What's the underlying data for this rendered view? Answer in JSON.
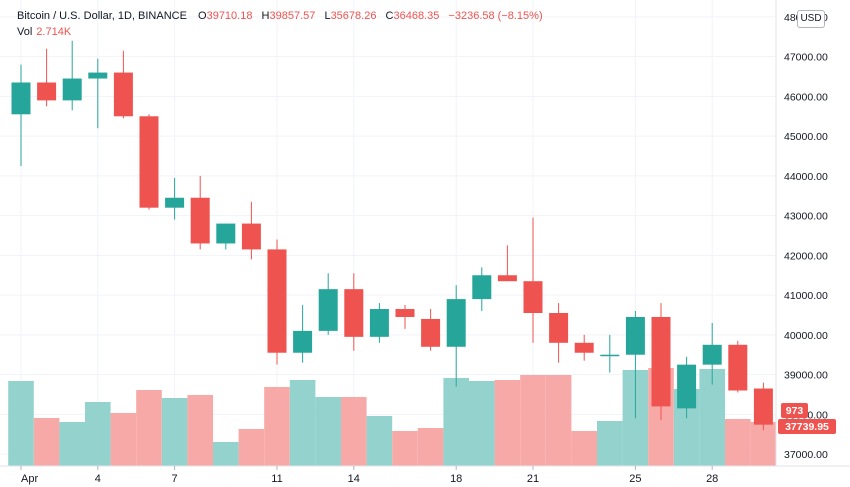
{
  "header": {
    "symbol": "Bitcoin / U.S. Dollar, 1D, BINANCE",
    "open_label": "O",
    "open": "39710.18",
    "high_label": "H",
    "high": "39857.57",
    "low_label": "L",
    "low": "35678.26",
    "close_label": "C",
    "close": "36468.35",
    "change": "−3236.58 (−8.15%)",
    "vol_label": "Vol",
    "vol": "2.714K"
  },
  "currency_button": "USD",
  "badges": {
    "volume": "973",
    "price": "37739.95"
  },
  "colors": {
    "up": "#26a69a",
    "down": "#ef5350",
    "up_volume": "#94d3cd",
    "down_volume": "#f7a9a7",
    "grid": "#f0f3fa"
  },
  "chart_data": {
    "type": "candlestick",
    "y_axis_ticks": [
      "48000.00",
      "47000.00",
      "46000.00",
      "45000.00",
      "44000.00",
      "43000.00",
      "42000.00",
      "41000.00",
      "40000.00",
      "39000.00",
      "38000.00",
      "37000.00"
    ],
    "ylim": [
      36700,
      48250
    ],
    "x_axis_ticks": [
      {
        "day": 1,
        "label": "Apr"
      },
      {
        "day": 4,
        "label": "4"
      },
      {
        "day": 7,
        "label": "7"
      },
      {
        "day": 11,
        "label": "11"
      },
      {
        "day": 14,
        "label": "14"
      },
      {
        "day": 18,
        "label": "18"
      },
      {
        "day": 21,
        "label": "21"
      },
      {
        "day": 25,
        "label": "25"
      },
      {
        "day": 28,
        "label": "28"
      }
    ],
    "first_day": 1,
    "last_day": 31,
    "candles": [
      {
        "day": 1,
        "open": 45550,
        "high": 46800,
        "low": 44250,
        "close": 46350,
        "volume": 0.85
      },
      {
        "day": 2,
        "open": 46350,
        "high": 47200,
        "low": 45750,
        "close": 45900,
        "volume": 0.48
      },
      {
        "day": 3,
        "open": 45900,
        "high": 47400,
        "low": 45650,
        "close": 46450,
        "volume": 0.44
      },
      {
        "day": 4,
        "open": 46450,
        "high": 46950,
        "low": 45200,
        "close": 46600,
        "volume": 0.64
      },
      {
        "day": 5,
        "open": 46600,
        "high": 47150,
        "low": 45450,
        "close": 45500,
        "volume": 0.53
      },
      {
        "day": 6,
        "open": 45500,
        "high": 45550,
        "low": 43150,
        "close": 43200,
        "volume": 0.76
      },
      {
        "day": 7,
        "open": 43200,
        "high": 43950,
        "low": 42900,
        "close": 43450,
        "volume": 0.68
      },
      {
        "day": 8,
        "open": 43450,
        "high": 44000,
        "low": 42150,
        "close": 42300,
        "volume": 0.71
      },
      {
        "day": 9,
        "open": 42300,
        "high": 42800,
        "low": 42150,
        "close": 42800,
        "volume": 0.24
      },
      {
        "day": 10,
        "open": 42800,
        "high": 43350,
        "low": 41900,
        "close": 42150,
        "volume": 0.37
      },
      {
        "day": 11,
        "open": 42150,
        "high": 42400,
        "low": 39250,
        "close": 39550,
        "volume": 0.79
      },
      {
        "day": 12,
        "open": 39550,
        "high": 40750,
        "low": 39300,
        "close": 40100,
        "volume": 0.86
      },
      {
        "day": 13,
        "open": 40100,
        "high": 41550,
        "low": 40000,
        "close": 41150,
        "volume": 0.69
      },
      {
        "day": 14,
        "open": 41150,
        "high": 41550,
        "low": 39600,
        "close": 39950,
        "volume": 0.69
      },
      {
        "day": 15,
        "open": 39950,
        "high": 40800,
        "low": 39800,
        "close": 40650,
        "volume": 0.5
      },
      {
        "day": 16,
        "open": 40650,
        "high": 40750,
        "low": 40150,
        "close": 40450,
        "volume": 0.35
      },
      {
        "day": 17,
        "open": 40400,
        "high": 40650,
        "low": 39600,
        "close": 39700,
        "volume": 0.38
      },
      {
        "day": 18,
        "open": 39700,
        "high": 41250,
        "low": 38700,
        "close": 40900,
        "volume": 0.88
      },
      {
        "day": 19,
        "open": 40900,
        "high": 41700,
        "low": 40600,
        "close": 41500,
        "volume": 0.85
      },
      {
        "day": 20,
        "open": 41500,
        "high": 42250,
        "low": 41350,
        "close": 41350,
        "volume": 0.86
      },
      {
        "day": 21,
        "open": 41350,
        "high": 42950,
        "low": 39800,
        "close": 40550,
        "volume": 0.91
      },
      {
        "day": 22,
        "open": 40550,
        "high": 40800,
        "low": 39300,
        "close": 39800,
        "volume": 0.91
      },
      {
        "day": 23,
        "open": 39800,
        "high": 40000,
        "low": 39350,
        "close": 39550,
        "volume": 0.35
      },
      {
        "day": 24,
        "open": 39500,
        "high": 40000,
        "low": 39050,
        "close": 39500,
        "volume": 0.45
      },
      {
        "day": 25,
        "open": 39500,
        "high": 40600,
        "low": 37900,
        "close": 40450,
        "volume": 0.96
      },
      {
        "day": 26,
        "open": 40450,
        "high": 40800,
        "low": 37850,
        "close": 38200,
        "volume": 0.98
      },
      {
        "day": 27,
        "open": 38150,
        "high": 39450,
        "low": 37900,
        "close": 39250,
        "volume": 0.77
      },
      {
        "day": 28,
        "open": 39250,
        "high": 40300,
        "low": 38750,
        "close": 39750,
        "volume": 0.97
      },
      {
        "day": 29,
        "open": 39750,
        "high": 39850,
        "low": 38550,
        "close": 38600,
        "volume": 0.47
      },
      {
        "day": 30,
        "open": 38650,
        "high": 38800,
        "low": 37600,
        "close": 37740,
        "volume": 0.44
      }
    ]
  }
}
